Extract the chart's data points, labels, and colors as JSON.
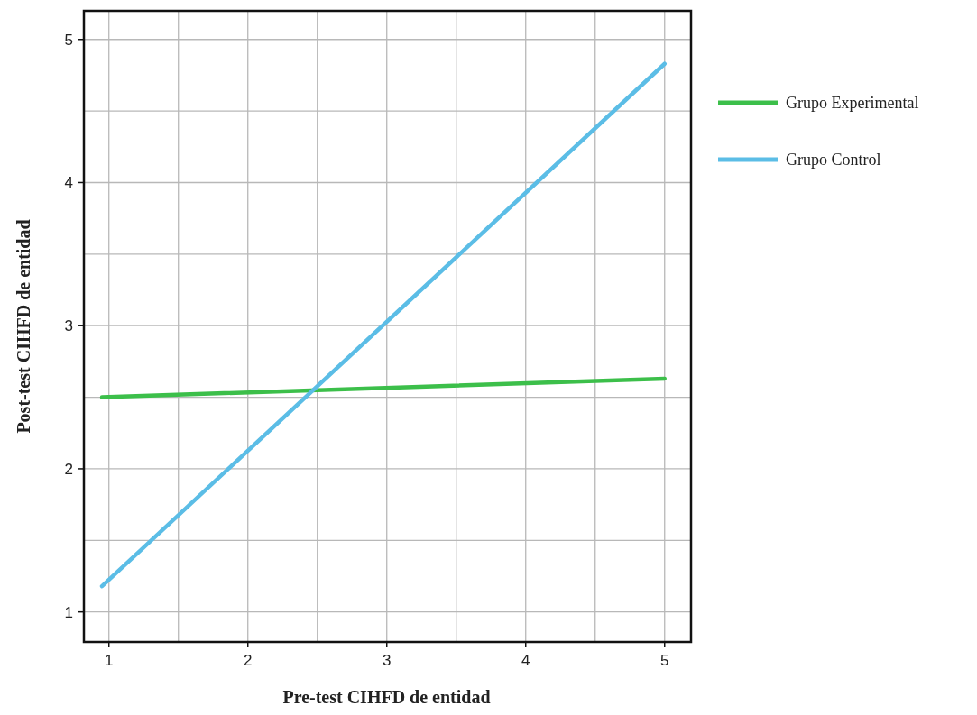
{
  "chart_data": {
    "type": "line",
    "xlabel": "Pre-test CIHFD de entidad",
    "ylabel": "Post-test CIHFD de entidad",
    "xlim": [
      0.82,
      5.19
    ],
    "ylim": [
      0.79,
      5.2
    ],
    "xticks": [
      1,
      {
        "value": 1.5,
        "label": null
      },
      2,
      {
        "value": 2.5,
        "label": null
      },
      3,
      {
        "value": 3.5,
        "label": null
      },
      4,
      {
        "value": 4.5,
        "label": null
      },
      5
    ],
    "yticks": [
      1,
      {
        "value": 1.5,
        "label": null
      },
      2,
      {
        "value": 2.5,
        "label": null
      },
      3,
      {
        "value": 3.5,
        "label": null
      },
      4,
      {
        "value": 4.5,
        "label": null
      },
      5
    ],
    "grid": true,
    "legend": "right",
    "marker": "none",
    "line_style": "solid",
    "x": [
      0.95,
      5
    ],
    "series": [
      {
        "name": "Grupo Experimental",
        "color": "#3cbf4a",
        "values": [
          2.5,
          2.63
        ]
      },
      {
        "name": "Grupo Control",
        "color": "#5bbde6",
        "values": [
          1.18,
          4.83
        ]
      }
    ]
  }
}
